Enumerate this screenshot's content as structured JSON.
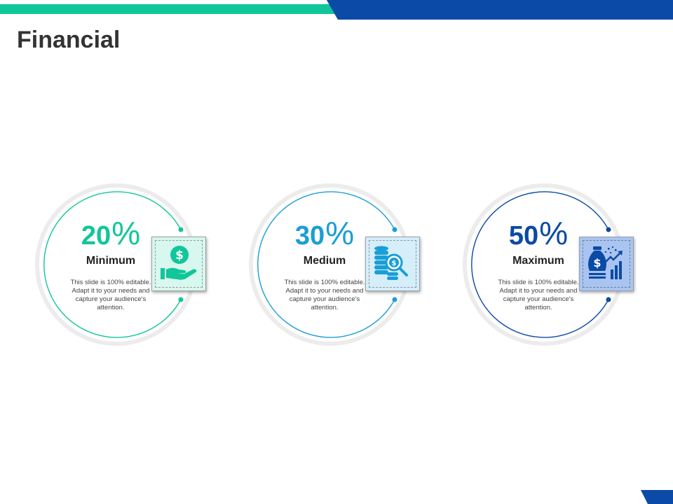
{
  "slide": {
    "title": "Financial"
  },
  "colors": {
    "green": "#11c69a",
    "teal": "#1a9ed6",
    "navy": "#0b4aa6"
  },
  "cards": [
    {
      "percent": "20",
      "percent_symbol": "%",
      "label": "Minimum",
      "description": "This slide is 100% editable. Adapt it to your needs and capture your audience's attention.",
      "icon": "hand-dollar-icon",
      "color": "#11c69a"
    },
    {
      "percent": "30",
      "percent_symbol": "%",
      "label": "Medium",
      "description": "This slide is 100% editable. Adapt it to your needs and capture your audience's attention.",
      "icon": "coins-search-icon",
      "color": "#1a9ed6"
    },
    {
      "percent": "50",
      "percent_symbol": "%",
      "label": "Maximum",
      "description": "This slide is 100% editable. Adapt it to your needs and capture your audience's attention.",
      "icon": "money-bag-growth-icon",
      "color": "#0b4aa6"
    }
  ]
}
